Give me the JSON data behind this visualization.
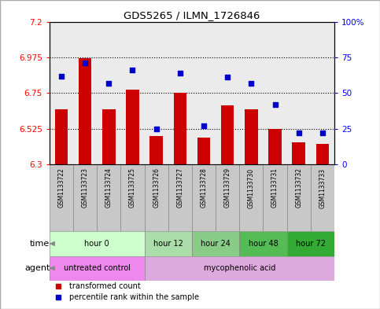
{
  "title": "GDS5265 / ILMN_1726846",
  "samples": [
    "GSM1133722",
    "GSM1133723",
    "GSM1133724",
    "GSM1133725",
    "GSM1133726",
    "GSM1133727",
    "GSM1133728",
    "GSM1133729",
    "GSM1133730",
    "GSM1133731",
    "GSM1133732",
    "GSM1133733"
  ],
  "transformed_count": [
    6.65,
    6.97,
    6.65,
    6.77,
    6.48,
    6.75,
    6.47,
    6.67,
    6.65,
    6.525,
    6.44,
    6.43
  ],
  "percentile_rank": [
    62,
    71,
    57,
    66,
    25,
    64,
    27,
    61,
    57,
    42,
    22,
    22
  ],
  "bar_color": "#cc0000",
  "dot_color": "#0000cc",
  "ylim_left": [
    6.3,
    7.2
  ],
  "ylim_right": [
    0,
    100
  ],
  "yticks_left": [
    6.3,
    6.525,
    6.75,
    6.975,
    7.2
  ],
  "yticks_right": [
    0,
    25,
    50,
    75,
    100
  ],
  "ytick_labels_left": [
    "6.3",
    "6.525",
    "6.75",
    "6.975",
    "7.2"
  ],
  "ytick_labels_right": [
    "0",
    "25",
    "50",
    "75",
    "100%"
  ],
  "hlines": [
    6.525,
    6.75,
    6.975
  ],
  "time_groups": [
    {
      "label": "hour 0",
      "start": 0,
      "end": 3,
      "color": "#ccffcc"
    },
    {
      "label": "hour 12",
      "start": 4,
      "end": 5,
      "color": "#aaddaa"
    },
    {
      "label": "hour 24",
      "start": 6,
      "end": 7,
      "color": "#88cc88"
    },
    {
      "label": "hour 48",
      "start": 8,
      "end": 9,
      "color": "#55bb55"
    },
    {
      "label": "hour 72",
      "start": 10,
      "end": 11,
      "color": "#33aa33"
    }
  ],
  "agent_groups": [
    {
      "label": "untreated control",
      "start": 0,
      "end": 3,
      "color": "#ee88ee"
    },
    {
      "label": "mycophenolic acid",
      "start": 4,
      "end": 11,
      "color": "#ddaadd"
    }
  ],
  "legend_bar_label": "transformed count",
  "legend_dot_label": "percentile rank within the sample",
  "time_label": "time",
  "agent_label": "agent",
  "col_bg_color": "#c8c8c8",
  "plot_border_color": "#000000"
}
